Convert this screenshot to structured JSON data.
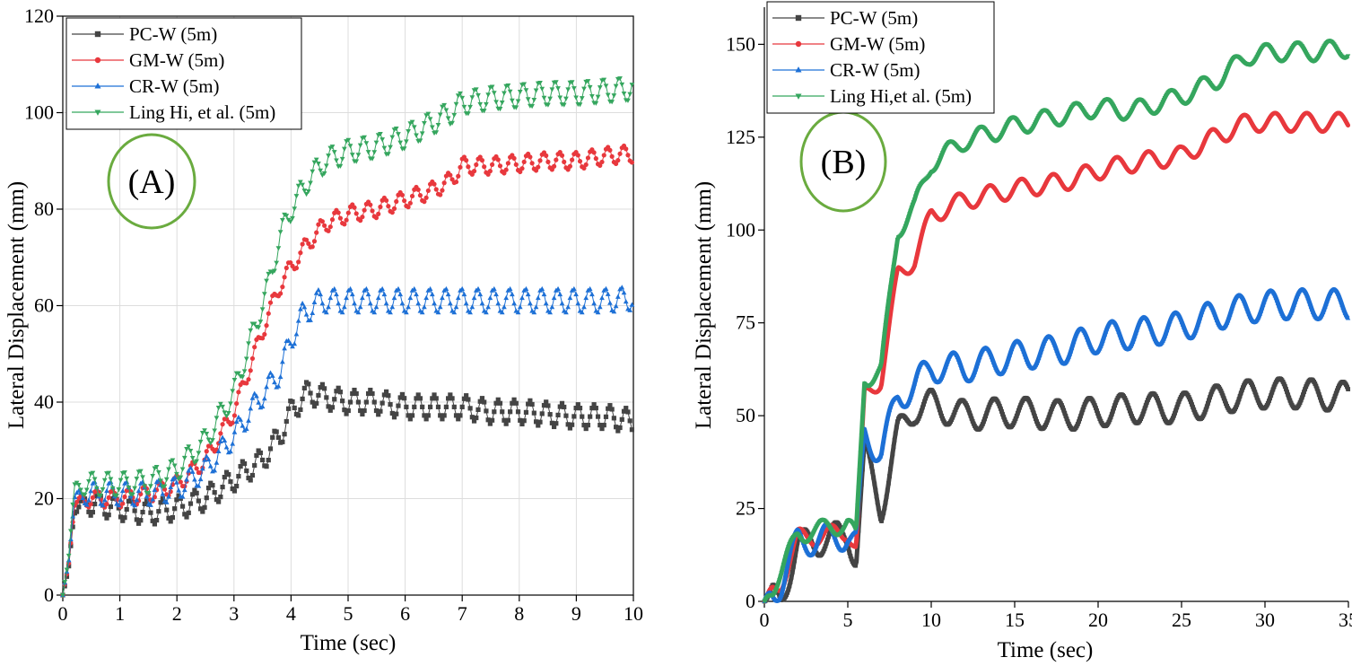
{
  "chart_data": [
    {
      "type": "line",
      "panel_label": "(A)",
      "xlabel": "Time (sec)",
      "ylabel": "Lateral Displacement (mm)",
      "xlim": [
        0,
        10
      ],
      "ylim": [
        0,
        120
      ],
      "xticks": [
        0,
        1,
        2,
        3,
        4,
        5,
        6,
        7,
        8,
        9,
        10
      ],
      "yticks": [
        0,
        20,
        40,
        60,
        80,
        100,
        120
      ],
      "grid": true,
      "legend_position": "top-left",
      "series": [
        {
          "name": "PC-W   (5m)",
          "color": "#444444",
          "marker": "square",
          "osc": 2.5,
          "points": [
            [
              0,
              0
            ],
            [
              0.1,
              5
            ],
            [
              0.2,
              18
            ],
            [
              0.5,
              19
            ],
            [
              1,
              18
            ],
            [
              1.5,
              17
            ],
            [
              2,
              18
            ],
            [
              2.5,
              20
            ],
            [
              3,
              24
            ],
            [
              3.5,
              28
            ],
            [
              3.8,
              33
            ],
            [
              4,
              38
            ],
            [
              4.3,
              42
            ],
            [
              4.6,
              41
            ],
            [
              5,
              40
            ],
            [
              5.5,
              40
            ],
            [
              6,
              39
            ],
            [
              6.5,
              39
            ],
            [
              7,
              39
            ],
            [
              7.5,
              38
            ],
            [
              8,
              38
            ],
            [
              8.5,
              37.5
            ],
            [
              9,
              37
            ],
            [
              9.5,
              37
            ],
            [
              10,
              36
            ]
          ]
        },
        {
          "name": "GM-W  (5m)",
          "color": "#e8383d",
          "marker": "circle",
          "osc": 1.8,
          "points": [
            [
              0,
              0
            ],
            [
              0.1,
              6
            ],
            [
              0.2,
              19
            ],
            [
              0.5,
              20
            ],
            [
              1,
              20
            ],
            [
              1.5,
              21
            ],
            [
              2,
              23
            ],
            [
              2.5,
              28
            ],
            [
              3,
              38
            ],
            [
              3.3,
              48
            ],
            [
              3.6,
              58
            ],
            [
              3.8,
              64
            ],
            [
              4,
              68
            ],
            [
              4.3,
              73
            ],
            [
              4.6,
              77
            ],
            [
              5,
              79
            ],
            [
              5.5,
              80
            ],
            [
              6,
              82
            ],
            [
              6.5,
              84
            ],
            [
              6.8,
              86
            ],
            [
              7,
              89
            ],
            [
              7.5,
              89
            ],
            [
              8,
              89.5
            ],
            [
              8.5,
              90
            ],
            [
              9,
              90
            ],
            [
              9.5,
              91
            ],
            [
              10,
              91.5
            ]
          ]
        },
        {
          "name": "CR-W  (5m)",
          "color": "#1d70d6",
          "marker": "triangle-up",
          "osc": 2.5,
          "points": [
            [
              0,
              0
            ],
            [
              0.1,
              7
            ],
            [
              0.2,
              20
            ],
            [
              0.5,
              21
            ],
            [
              1,
              21
            ],
            [
              1.5,
              21
            ],
            [
              2,
              22
            ],
            [
              2.5,
              26
            ],
            [
              3,
              33
            ],
            [
              3.4,
              40
            ],
            [
              3.8,
              46
            ],
            [
              4,
              53
            ],
            [
              4.2,
              58
            ],
            [
              4.5,
              61
            ],
            [
              5,
              61
            ],
            [
              5.5,
              61
            ],
            [
              6,
              61
            ],
            [
              6.5,
              61
            ],
            [
              7,
              61
            ],
            [
              7.5,
              61
            ],
            [
              8,
              61
            ],
            [
              8.5,
              61
            ],
            [
              9,
              61
            ],
            [
              9.5,
              61
            ],
            [
              10,
              61.5
            ]
          ]
        },
        {
          "name": "Ling Hi, et al. (5m)",
          "color": "#35a65e",
          "marker": "triangle-down",
          "osc": 2.5,
          "points": [
            [
              0,
              0
            ],
            [
              0.1,
              8
            ],
            [
              0.2,
              22
            ],
            [
              0.5,
              23
            ],
            [
              1,
              23
            ],
            [
              1.5,
              23.5
            ],
            [
              2,
              26
            ],
            [
              2.5,
              32
            ],
            [
              3,
              42
            ],
            [
              3.3,
              53
            ],
            [
              3.6,
              64
            ],
            [
              3.8,
              74
            ],
            [
              4,
              80
            ],
            [
              4.3,
              86
            ],
            [
              4.6,
              90
            ],
            [
              5,
              92
            ],
            [
              5.5,
              93
            ],
            [
              6,
              95
            ],
            [
              6.5,
              98
            ],
            [
              6.8,
              100
            ],
            [
              7,
              102
            ],
            [
              7.5,
              103
            ],
            [
              8,
              103.5
            ],
            [
              8.5,
              104
            ],
            [
              9,
              104
            ],
            [
              9.5,
              104.5
            ],
            [
              10,
              105
            ]
          ]
        }
      ]
    },
    {
      "type": "line",
      "panel_label": "(B)",
      "xlabel": "Time (sec)",
      "ylabel": "Lateral Displacement (mm)",
      "xlim": [
        0,
        35
      ],
      "ylim": [
        0,
        160
      ],
      "xticks": [
        0,
        5,
        10,
        15,
        20,
        25,
        30,
        35
      ],
      "yticks": [
        0,
        25,
        50,
        75,
        100,
        125,
        150
      ],
      "grid": false,
      "legend_position": "top-left",
      "series": [
        {
          "name": "PC-W   (5m)",
          "color": "#444444",
          "marker": "square",
          "osc": 4,
          "points": [
            [
              0,
              0
            ],
            [
              1,
              1
            ],
            [
              2,
              15
            ],
            [
              4,
              17
            ],
            [
              5,
              18
            ],
            [
              5.5,
              12
            ],
            [
              6,
              40
            ],
            [
              7,
              25
            ],
            [
              8,
              45
            ],
            [
              9,
              52
            ],
            [
              10,
              53
            ],
            [
              12,
              50
            ],
            [
              15,
              51
            ],
            [
              18,
              50
            ],
            [
              20,
              51
            ],
            [
              22,
              52
            ],
            [
              25,
              52
            ],
            [
              28,
              55
            ],
            [
              30,
              56
            ],
            [
              32,
              56
            ],
            [
              35,
              55
            ]
          ]
        },
        {
          "name": "GM-W  (5m)",
          "color": "#e8383d",
          "marker": "circle",
          "osc": 2.5,
          "points": [
            [
              0,
              0
            ],
            [
              1,
              5
            ],
            [
              2,
              17
            ],
            [
              4,
              18
            ],
            [
              5,
              19
            ],
            [
              5.5,
              14
            ],
            [
              6,
              55
            ],
            [
              7,
              60
            ],
            [
              8,
              88
            ],
            [
              9,
              92
            ],
            [
              10,
              104
            ],
            [
              12,
              108
            ],
            [
              15,
              111
            ],
            [
              18,
              113
            ],
            [
              20,
              116
            ],
            [
              22,
              118
            ],
            [
              25,
              120
            ],
            [
              27,
              125
            ],
            [
              29,
              129
            ],
            [
              31,
              129
            ],
            [
              33,
              129
            ],
            [
              35,
              129
            ]
          ]
        },
        {
          "name": "CR-W  (5m)",
          "color": "#1d70d6",
          "marker": "triangle-up",
          "osc": 4,
          "points": [
            [
              0,
              0
            ],
            [
              1,
              5
            ],
            [
              2,
              16
            ],
            [
              4,
              17
            ],
            [
              5,
              18
            ],
            [
              5.5,
              15
            ],
            [
              6,
              45
            ],
            [
              7,
              40
            ],
            [
              8,
              55
            ],
            [
              9,
              58
            ],
            [
              10,
              63
            ],
            [
              12,
              63
            ],
            [
              15,
              66
            ],
            [
              18,
              68
            ],
            [
              20,
              71
            ],
            [
              22,
              72
            ],
            [
              25,
              74
            ],
            [
              27,
              77
            ],
            [
              29,
              79
            ],
            [
              31,
              80
            ],
            [
              33,
              80
            ],
            [
              35,
              80
            ]
          ]
        },
        {
          "name": "Ling Hi,et al. (5m)",
          "color": "#35a65e",
          "marker": "triangle-down",
          "osc": 2.5,
          "points": [
            [
              0,
              0
            ],
            [
              1,
              8
            ],
            [
              2,
              18
            ],
            [
              4,
              20
            ],
            [
              5,
              21
            ],
            [
              5.5,
              17
            ],
            [
              6,
              60
            ],
            [
              7,
              62
            ],
            [
              8,
              100
            ],
            [
              9,
              106
            ],
            [
              10,
              118
            ],
            [
              12,
              124
            ],
            [
              15,
              128
            ],
            [
              18,
              131
            ],
            [
              20,
              133
            ],
            [
              22,
              132
            ],
            [
              25,
              136
            ],
            [
              27,
              140
            ],
            [
              29,
              147
            ],
            [
              31,
              148
            ],
            [
              33,
              148
            ],
            [
              35,
              149
            ]
          ]
        }
      ]
    }
  ]
}
